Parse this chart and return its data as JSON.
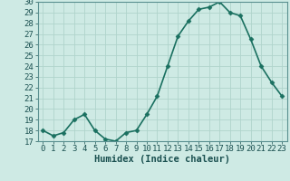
{
  "x": [
    0,
    1,
    2,
    3,
    4,
    5,
    6,
    7,
    8,
    9,
    10,
    11,
    12,
    13,
    14,
    15,
    16,
    17,
    18,
    19,
    20,
    21,
    22,
    23
  ],
  "y": [
    18.0,
    17.5,
    17.8,
    19.0,
    19.5,
    18.0,
    17.2,
    17.0,
    17.8,
    18.0,
    19.5,
    21.2,
    24.0,
    26.8,
    28.2,
    29.3,
    29.5,
    30.0,
    29.0,
    28.7,
    26.5,
    24.0,
    22.5,
    21.2
  ],
  "line_color": "#1a7060",
  "marker": "D",
  "marker_size": 2.5,
  "bg_color": "#ceeae4",
  "grid_color": "#b0d4cc",
  "xlabel": "Humidex (Indice chaleur)",
  "xlim": [
    -0.5,
    23.5
  ],
  "ylim": [
    17,
    30
  ],
  "yticks": [
    17,
    18,
    19,
    20,
    21,
    22,
    23,
    24,
    25,
    26,
    27,
    28,
    29,
    30
  ],
  "xticks": [
    0,
    1,
    2,
    3,
    4,
    5,
    6,
    7,
    8,
    9,
    10,
    11,
    12,
    13,
    14,
    15,
    16,
    17,
    18,
    19,
    20,
    21,
    22,
    23
  ],
  "xlabel_fontsize": 7.5,
  "tick_fontsize": 6.5,
  "line_width": 1.2
}
